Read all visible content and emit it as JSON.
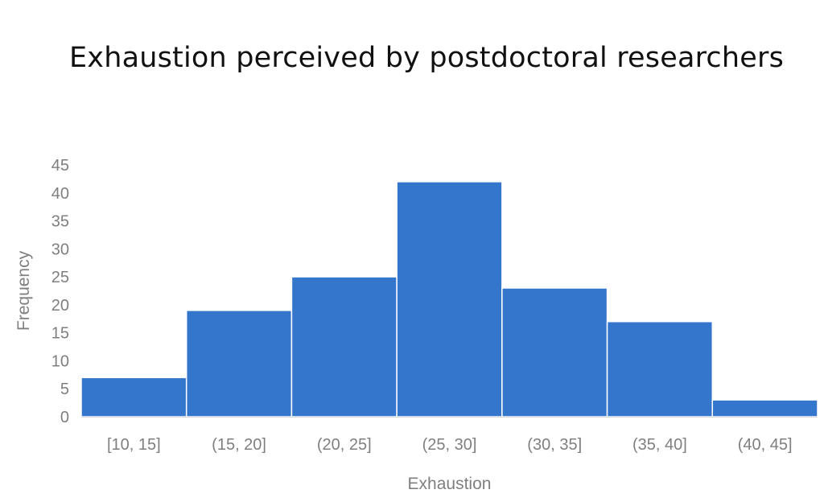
{
  "chart_data": {
    "type": "bar",
    "title": "Exhaustion perceived by postdoctoral researchers",
    "xlabel": "Exhaustion",
    "ylabel": "Frequency",
    "categories": [
      "[10, 15]",
      "(15, 20]",
      "(20, 25]",
      "(25, 30]",
      "(30, 35]",
      "(35, 40]",
      "(40, 45]"
    ],
    "values": [
      7,
      19,
      25,
      42,
      23,
      17,
      3
    ],
    "ylim": [
      0,
      45
    ],
    "yticks": [
      0,
      5,
      10,
      15,
      20,
      25,
      30,
      35,
      40,
      45
    ],
    "grid": false,
    "legend": false,
    "bar_color": "#3476cc",
    "bar_edge_color": "#ffffff",
    "axis_color": "#d9d9d9",
    "text_color": "#7f7f7f",
    "title_color": "#111111"
  }
}
